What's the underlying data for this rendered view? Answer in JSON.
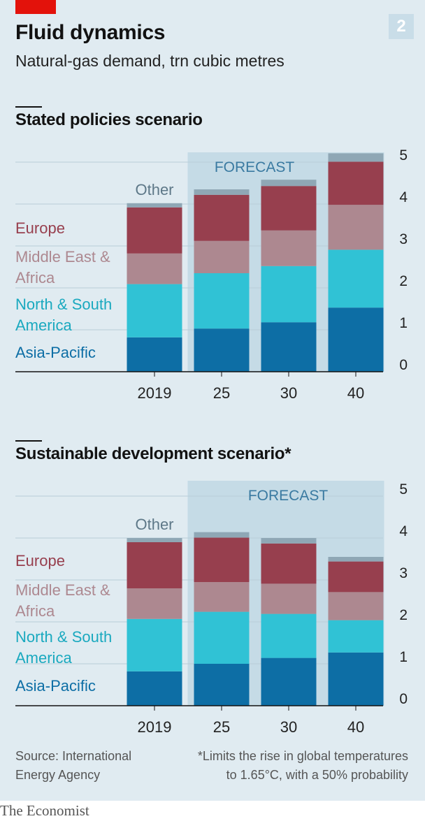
{
  "title": "Fluid dynamics",
  "subtitle": "Natural-gas demand, trn cubic metres",
  "chart_number": "2",
  "source": [
    "Source: International",
    "Energy Agency"
  ],
  "footnote": [
    "*Limits the rise in global temperatures",
    "to 1.65°C, with a 50% probability"
  ],
  "brand": "The Economist",
  "colors": {
    "Asia-Pacific": "#0d6ea5",
    "North & South America": "#30c2d5",
    "Middle East & Africa": "#ad8890",
    "Europe": "#973f4e",
    "Other": "#8fa7b5",
    "forecast_band": "#c5dbe6"
  },
  "chart_data": [
    {
      "type": "bar",
      "stacked": true,
      "title": "Stated policies scenario",
      "categories": [
        "2019",
        "25",
        "30",
        "40"
      ],
      "forecast_label": "FORECAST",
      "forecast_categories": [
        "25",
        "30",
        "40"
      ],
      "ylim": [
        0,
        5
      ],
      "yticks": [
        0,
        1,
        2,
        3,
        4,
        5
      ],
      "series": [
        {
          "name": "Asia-Pacific",
          "values": [
            0.82,
            1.03,
            1.18,
            1.53
          ]
        },
        {
          "name": "North & South America",
          "values": [
            1.27,
            1.32,
            1.34,
            1.38
          ]
        },
        {
          "name": "Middle East & Africa",
          "values": [
            0.73,
            0.77,
            0.85,
            1.07
          ]
        },
        {
          "name": "Europe",
          "values": [
            1.1,
            1.1,
            1.06,
            1.03
          ]
        },
        {
          "name": "Other",
          "values": [
            0.1,
            0.13,
            0.15,
            0.2
          ]
        }
      ]
    },
    {
      "type": "bar",
      "stacked": true,
      "title": "Sustainable development scenario*",
      "categories": [
        "2019",
        "25",
        "30",
        "40"
      ],
      "forecast_label": "FORECAST",
      "forecast_categories": [
        "25",
        "30",
        "40"
      ],
      "ylim": [
        0,
        5
      ],
      "yticks": [
        0,
        1,
        2,
        3,
        4,
        5
      ],
      "series": [
        {
          "name": "Asia-Pacific",
          "values": [
            0.82,
            1.0,
            1.14,
            1.27
          ]
        },
        {
          "name": "North & South America",
          "values": [
            1.25,
            1.24,
            1.05,
            0.77
          ]
        },
        {
          "name": "Middle East & Africa",
          "values": [
            0.73,
            0.71,
            0.72,
            0.67
          ]
        },
        {
          "name": "Europe",
          "values": [
            1.1,
            1.06,
            0.96,
            0.73
          ]
        },
        {
          "name": "Other",
          "values": [
            0.1,
            0.13,
            0.13,
            0.11
          ]
        }
      ]
    }
  ]
}
